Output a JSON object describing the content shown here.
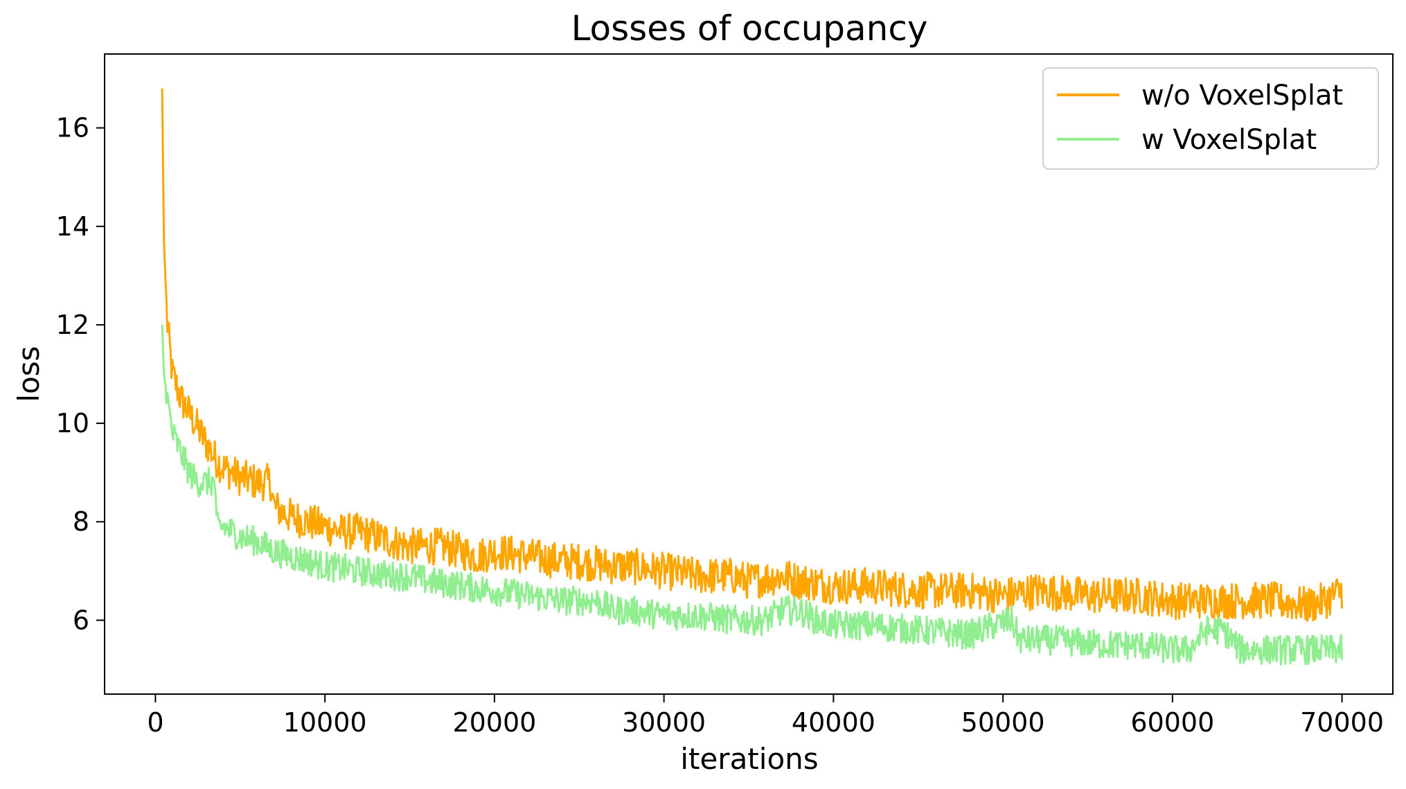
{
  "chart_data": {
    "type": "line",
    "title": "Losses of occupancy",
    "xlabel": "iterations",
    "ylabel": "loss",
    "xlim": [
      -3000,
      73000
    ],
    "ylim": [
      4.5,
      17.5
    ],
    "xticks": [
      0,
      10000,
      20000,
      30000,
      40000,
      50000,
      60000,
      70000
    ],
    "yticks": [
      6,
      8,
      10,
      12,
      14,
      16
    ],
    "grid": false,
    "legend_position": "top-right",
    "series": [
      {
        "name": "w/o VoxelSplat",
        "color": "#FFA500",
        "x": [
          400,
          500,
          700,
          1000,
          1500,
          2000,
          2500,
          3000,
          3500,
          4000,
          5000,
          6000,
          6800,
          7000,
          8000,
          9000,
          10000,
          11000,
          12000,
          13000,
          14000,
          15000,
          16000,
          17000,
          18000,
          19000,
          20000,
          22000,
          24000,
          25000,
          27000,
          28000,
          30000,
          32000,
          34000,
          35000,
          37000,
          38000,
          40000,
          42000,
          45000,
          48000,
          50000,
          52000,
          55000,
          58000,
          60000,
          62000,
          64000,
          66000,
          68000,
          69000,
          70000
        ],
        "values": [
          16.8,
          13.7,
          12.0,
          11.0,
          10.5,
          10.2,
          9.9,
          9.6,
          9.3,
          9.1,
          8.9,
          8.8,
          8.8,
          8.3,
          8.1,
          8.0,
          7.9,
          7.8,
          7.8,
          7.7,
          7.6,
          7.5,
          7.5,
          7.5,
          7.4,
          7.3,
          7.4,
          7.3,
          7.2,
          7.2,
          7.1,
          7.1,
          7.0,
          6.9,
          6.9,
          6.8,
          6.9,
          6.8,
          6.7,
          6.7,
          6.6,
          6.6,
          6.5,
          6.6,
          6.5,
          6.5,
          6.4,
          6.4,
          6.4,
          6.4,
          6.3,
          6.4,
          6.6
        ]
      },
      {
        "name": "w VoxelSplat",
        "color": "#90EE90",
        "x": [
          400,
          500,
          700,
          1000,
          1500,
          2000,
          2500,
          3000,
          3500,
          3600,
          4000,
          5000,
          6000,
          7000,
          8000,
          10000,
          12000,
          14000,
          15000,
          16000,
          18000,
          20000,
          22000,
          24000,
          26000,
          27000,
          28000,
          30000,
          32000,
          34000,
          36000,
          37000,
          38000,
          39000,
          40000,
          42000,
          45000,
          48000,
          49500,
          50500,
          51000,
          53000,
          56000,
          58000,
          60000,
          61000,
          62000,
          63000,
          64000,
          66000,
          68000,
          70000
        ],
        "values": [
          12.0,
          11.0,
          10.5,
          9.8,
          9.4,
          9.0,
          8.8,
          8.8,
          8.8,
          7.9,
          7.9,
          7.7,
          7.6,
          7.4,
          7.3,
          7.1,
          7.0,
          6.9,
          6.9,
          6.8,
          6.7,
          6.6,
          6.5,
          6.4,
          6.4,
          6.2,
          6.2,
          6.1,
          6.1,
          6.0,
          6.0,
          6.2,
          6.2,
          6.0,
          5.9,
          5.9,
          5.8,
          5.7,
          5.9,
          6.0,
          5.6,
          5.6,
          5.5,
          5.5,
          5.4,
          5.4,
          5.8,
          5.8,
          5.4,
          5.4,
          5.4,
          5.4
        ]
      }
    ]
  }
}
